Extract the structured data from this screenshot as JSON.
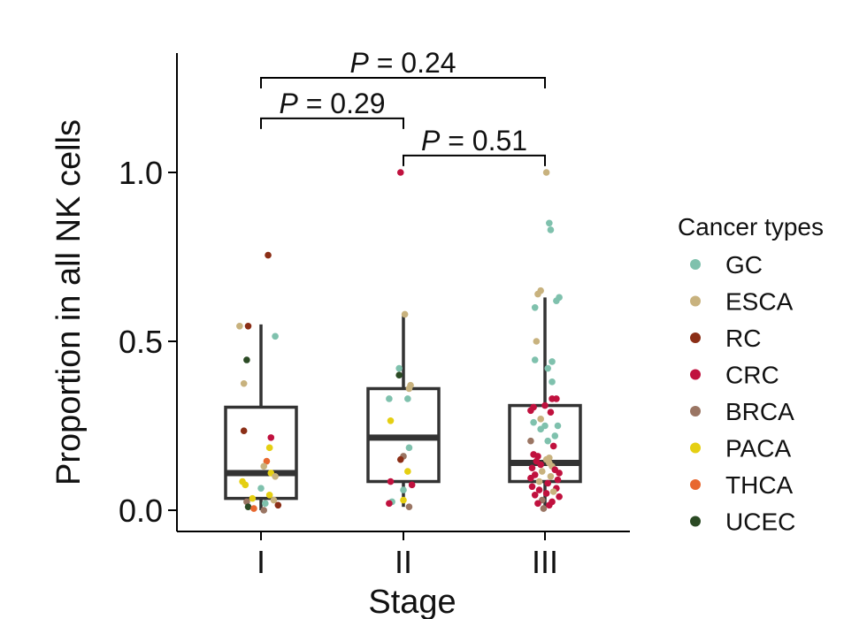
{
  "chart_data": {
    "type": "box",
    "xlabel": "Stage",
    "ylabel": "Proportion in all NK cells",
    "categories": [
      "I",
      "II",
      "III"
    ],
    "ylim": [
      -0.06,
      1.35
    ],
    "yticks": [
      0.0,
      0.5,
      1.0
    ],
    "ytick_labels": [
      "0.0",
      "0.5",
      "1.0"
    ],
    "grid": false,
    "boxes": [
      {
        "category": "I",
        "q1": 0.035,
        "median": 0.11,
        "q3": 0.305,
        "whisker_low": 0.0,
        "whisker_high": 0.55
      },
      {
        "category": "II",
        "q1": 0.085,
        "median": 0.215,
        "q3": 0.36,
        "whisker_low": 0.01,
        "whisker_high": 0.58
      },
      {
        "category": "III",
        "q1": 0.085,
        "median": 0.14,
        "q3": 0.31,
        "whisker_low": 0.0,
        "whisker_high": 0.63
      }
    ],
    "comparisons": [
      {
        "from": "I",
        "to": "III",
        "y": 1.28,
        "label_prefix": "P",
        "label_value": " = 0.24"
      },
      {
        "from": "I",
        "to": "II",
        "y": 1.16,
        "label_prefix": "P",
        "label_value": " = 0.29"
      },
      {
        "from": "II",
        "to": "III",
        "y": 1.05,
        "label_prefix": "P",
        "label_value": " = 0.51"
      }
    ],
    "legend": {
      "title": "Cancer types",
      "position": "right",
      "items": [
        {
          "name": "GC",
          "color": "#7fc1ad"
        },
        {
          "name": "ESCA",
          "color": "#c8b27e"
        },
        {
          "name": "RC",
          "color": "#8b2e16"
        },
        {
          "name": "CRC",
          "color": "#c0113e"
        },
        {
          "name": "BRCA",
          "color": "#9a7563"
        },
        {
          "name": "PACA",
          "color": "#e5cf12"
        },
        {
          "name": "THCA",
          "color": "#e8672f"
        },
        {
          "name": "UCEC",
          "color": "#2b4a24"
        }
      ]
    },
    "points": [
      {
        "stage": "I",
        "type": "RC",
        "y": 0.755,
        "j": 0.05
      },
      {
        "stage": "I",
        "type": "ESCA",
        "y": 0.545,
        "j": -0.15
      },
      {
        "stage": "I",
        "type": "RC",
        "y": 0.545,
        "j": -0.09
      },
      {
        "stage": "I",
        "type": "GC",
        "y": 0.515,
        "j": 0.1
      },
      {
        "stage": "I",
        "type": "UCEC",
        "y": 0.445,
        "j": -0.1
      },
      {
        "stage": "I",
        "type": "ESCA",
        "y": 0.375,
        "j": -0.12
      },
      {
        "stage": "I",
        "type": "RC",
        "y": 0.235,
        "j": -0.12
      },
      {
        "stage": "I",
        "type": "CRC",
        "y": 0.215,
        "j": 0.07
      },
      {
        "stage": "I",
        "type": "PACA",
        "y": 0.185,
        "j": 0.06
      },
      {
        "stage": "I",
        "type": "THCA",
        "y": 0.145,
        "j": 0.04
      },
      {
        "stage": "I",
        "type": "ESCA",
        "y": 0.13,
        "j": 0.02
      },
      {
        "stage": "I",
        "type": "PACA",
        "y": 0.11,
        "j": 0.07
      },
      {
        "stage": "I",
        "type": "ESCA",
        "y": 0.1,
        "j": 0.1
      },
      {
        "stage": "I",
        "type": "PACA",
        "y": 0.085,
        "j": -0.13
      },
      {
        "stage": "I",
        "type": "PACA",
        "y": 0.075,
        "j": -0.11
      },
      {
        "stage": "I",
        "type": "GC",
        "y": 0.065,
        "j": 0.0
      },
      {
        "stage": "I",
        "type": "PACA",
        "y": 0.045,
        "j": 0.06
      },
      {
        "stage": "I",
        "type": "PACA",
        "y": 0.035,
        "j": -0.06
      },
      {
        "stage": "I",
        "type": "ESCA",
        "y": 0.03,
        "j": 0.09
      },
      {
        "stage": "I",
        "type": "BRCA",
        "y": 0.025,
        "j": -0.1
      },
      {
        "stage": "I",
        "type": "GC",
        "y": 0.02,
        "j": 0.03
      },
      {
        "stage": "I",
        "type": "RC",
        "y": 0.015,
        "j": 0.12
      },
      {
        "stage": "I",
        "type": "UCEC",
        "y": 0.01,
        "j": -0.09
      },
      {
        "stage": "I",
        "type": "THCA",
        "y": 0.005,
        "j": -0.05
      },
      {
        "stage": "I",
        "type": "BRCA",
        "y": 0.0,
        "j": 0.02
      },
      {
        "stage": "II",
        "type": "CRC",
        "y": 1.0,
        "j": -0.02
      },
      {
        "stage": "II",
        "type": "ESCA",
        "y": 0.58,
        "j": 0.01
      },
      {
        "stage": "II",
        "type": "GC",
        "y": 0.42,
        "j": -0.03
      },
      {
        "stage": "II",
        "type": "UCEC",
        "y": 0.4,
        "j": -0.03
      },
      {
        "stage": "II",
        "type": "ESCA",
        "y": 0.37,
        "j": 0.05
      },
      {
        "stage": "II",
        "type": "ESCA",
        "y": 0.36,
        "j": 0.04
      },
      {
        "stage": "II",
        "type": "GC",
        "y": 0.33,
        "j": 0.03
      },
      {
        "stage": "II",
        "type": "GC",
        "y": 0.33,
        "j": -0.1
      },
      {
        "stage": "II",
        "type": "PACA",
        "y": 0.265,
        "j": -0.09
      },
      {
        "stage": "II",
        "type": "GC",
        "y": 0.185,
        "j": 0.04
      },
      {
        "stage": "II",
        "type": "BRCA",
        "y": 0.16,
        "j": 0.0
      },
      {
        "stage": "II",
        "type": "RC",
        "y": 0.15,
        "j": -0.02
      },
      {
        "stage": "II",
        "type": "PACA",
        "y": 0.115,
        "j": 0.03
      },
      {
        "stage": "II",
        "type": "CRC",
        "y": 0.085,
        "j": -0.09
      },
      {
        "stage": "II",
        "type": "CRC",
        "y": 0.075,
        "j": 0.06
      },
      {
        "stage": "II",
        "type": "GC",
        "y": 0.06,
        "j": 0.0
      },
      {
        "stage": "II",
        "type": "PACA",
        "y": 0.03,
        "j": 0.0
      },
      {
        "stage": "II",
        "type": "GC",
        "y": 0.025,
        "j": -0.08
      },
      {
        "stage": "II",
        "type": "CRC",
        "y": 0.02,
        "j": -0.1
      },
      {
        "stage": "II",
        "type": "BRCA",
        "y": 0.01,
        "j": 0.04
      },
      {
        "stage": "III",
        "type": "ESCA",
        "y": 1.0,
        "j": 0.01
      },
      {
        "stage": "III",
        "type": "GC",
        "y": 0.85,
        "j": 0.03
      },
      {
        "stage": "III",
        "type": "GC",
        "y": 0.83,
        "j": 0.04
      },
      {
        "stage": "III",
        "type": "ESCA",
        "y": 0.65,
        "j": -0.03
      },
      {
        "stage": "III",
        "type": "GC",
        "y": 0.63,
        "j": 0.1
      },
      {
        "stage": "III",
        "type": "GC",
        "y": 0.62,
        "j": 0.08
      },
      {
        "stage": "III",
        "type": "ESCA",
        "y": 0.64,
        "j": -0.05
      },
      {
        "stage": "III",
        "type": "GC",
        "y": 0.6,
        "j": -0.07
      },
      {
        "stage": "III",
        "type": "ESCA",
        "y": 0.5,
        "j": -0.06
      },
      {
        "stage": "III",
        "type": "GC",
        "y": 0.445,
        "j": -0.07
      },
      {
        "stage": "III",
        "type": "GC",
        "y": 0.44,
        "j": 0.05
      },
      {
        "stage": "III",
        "type": "GC",
        "y": 0.38,
        "j": 0.05
      },
      {
        "stage": "III",
        "type": "GC",
        "y": 0.42,
        "j": 0.02
      },
      {
        "stage": "III",
        "type": "CRC",
        "y": 0.33,
        "j": 0.05
      },
      {
        "stage": "III",
        "type": "CRC",
        "y": 0.33,
        "j": 0.08
      },
      {
        "stage": "III",
        "type": "CRC",
        "y": 0.31,
        "j": 0.0
      },
      {
        "stage": "III",
        "type": "CRC",
        "y": 0.305,
        "j": -0.08
      },
      {
        "stage": "III",
        "type": "CRC",
        "y": 0.295,
        "j": -0.1
      },
      {
        "stage": "III",
        "type": "CRC",
        "y": 0.29,
        "j": 0.04
      },
      {
        "stage": "III",
        "type": "ESCA",
        "y": 0.27,
        "j": -0.03
      },
      {
        "stage": "III",
        "type": "GC",
        "y": 0.26,
        "j": -0.08
      },
      {
        "stage": "III",
        "type": "GC",
        "y": 0.25,
        "j": 0.0
      },
      {
        "stage": "III",
        "type": "GC",
        "y": 0.25,
        "j": 0.09
      },
      {
        "stage": "III",
        "type": "GC",
        "y": 0.24,
        "j": -0.03
      },
      {
        "stage": "III",
        "type": "GC",
        "y": 0.22,
        "j": 0.07
      },
      {
        "stage": "III",
        "type": "BRCA",
        "y": 0.205,
        "j": -0.1
      },
      {
        "stage": "III",
        "type": "GC",
        "y": 0.205,
        "j": 0.02
      },
      {
        "stage": "III",
        "type": "CRC",
        "y": 0.19,
        "j": 0.06
      },
      {
        "stage": "III",
        "type": "CRC",
        "y": 0.165,
        "j": -0.08
      },
      {
        "stage": "III",
        "type": "CRC",
        "y": 0.16,
        "j": -0.05
      },
      {
        "stage": "III",
        "type": "ESCA",
        "y": 0.155,
        "j": 0.03
      },
      {
        "stage": "III",
        "type": "ESCA",
        "y": 0.15,
        "j": 0.01
      },
      {
        "stage": "III",
        "type": "CRC",
        "y": 0.145,
        "j": -0.06
      },
      {
        "stage": "III",
        "type": "ESCA",
        "y": 0.14,
        "j": 0.03
      },
      {
        "stage": "III",
        "type": "CRC",
        "y": 0.135,
        "j": -0.03
      },
      {
        "stage": "III",
        "type": "ESCA",
        "y": 0.13,
        "j": 0.05
      },
      {
        "stage": "III",
        "type": "CRC",
        "y": 0.125,
        "j": -0.09
      },
      {
        "stage": "III",
        "type": "CRC",
        "y": 0.12,
        "j": 0.07
      },
      {
        "stage": "III",
        "type": "ESCA",
        "y": 0.115,
        "j": -0.02
      },
      {
        "stage": "III",
        "type": "CRC",
        "y": 0.11,
        "j": 0.1
      },
      {
        "stage": "III",
        "type": "CRC",
        "y": 0.105,
        "j": -0.07
      },
      {
        "stage": "III",
        "type": "ESCA",
        "y": 0.1,
        "j": 0.04
      },
      {
        "stage": "III",
        "type": "CRC",
        "y": 0.095,
        "j": -0.1
      },
      {
        "stage": "III",
        "type": "CRC",
        "y": 0.09,
        "j": 0.09
      },
      {
        "stage": "III",
        "type": "ESCA",
        "y": 0.085,
        "j": -0.04
      },
      {
        "stage": "III",
        "type": "CRC",
        "y": 0.08,
        "j": 0.02
      },
      {
        "stage": "III",
        "type": "CRC",
        "y": 0.07,
        "j": -0.09
      },
      {
        "stage": "III",
        "type": "CRC",
        "y": 0.065,
        "j": 0.08
      },
      {
        "stage": "III",
        "type": "CRC",
        "y": 0.06,
        "j": -0.04
      },
      {
        "stage": "III",
        "type": "ESCA",
        "y": 0.055,
        "j": 0.06
      },
      {
        "stage": "III",
        "type": "CRC",
        "y": 0.05,
        "j": 0.01
      },
      {
        "stage": "III",
        "type": "CRC",
        "y": 0.045,
        "j": -0.07
      },
      {
        "stage": "III",
        "type": "CRC",
        "y": 0.04,
        "j": 0.1
      },
      {
        "stage": "III",
        "type": "BRCA",
        "y": 0.03,
        "j": -0.02
      },
      {
        "stage": "III",
        "type": "CRC",
        "y": 0.025,
        "j": 0.05
      },
      {
        "stage": "III",
        "type": "CRC",
        "y": 0.02,
        "j": -0.05
      },
      {
        "stage": "III",
        "type": "CRC",
        "y": 0.015,
        "j": 0.03
      },
      {
        "stage": "III",
        "type": "BRCA",
        "y": 0.005,
        "j": -0.01
      }
    ]
  }
}
